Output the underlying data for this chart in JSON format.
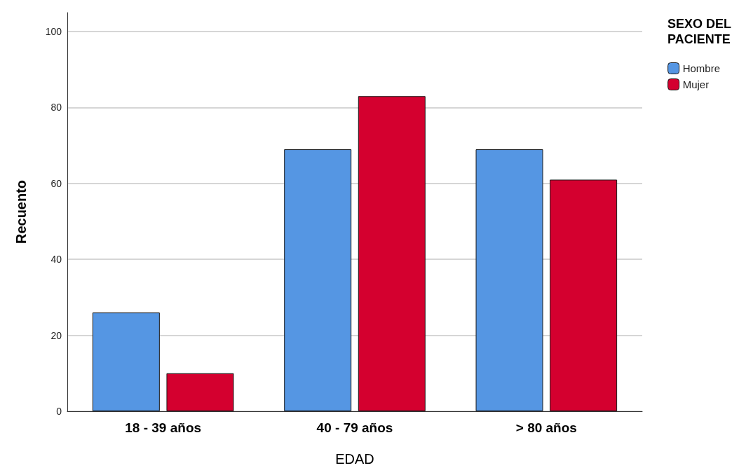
{
  "chart_data": {
    "type": "bar",
    "xlabel": "EDAD",
    "ylabel": "Recuento",
    "legend_title": "SEXO DEL\nPACIENTE",
    "categories": [
      "18 - 39 años",
      "40 - 79 años",
      "> 80 años"
    ],
    "series": [
      {
        "name": "Hombre",
        "color": "#5596e3",
        "values": [
          26,
          69,
          69
        ]
      },
      {
        "name": "Mujer",
        "color": "#d4002f",
        "values": [
          10,
          83,
          61
        ]
      }
    ],
    "ylim": [
      0,
      105
    ],
    "yticks": [
      0,
      20,
      40,
      60,
      80,
      100
    ],
    "grid": "y",
    "legend": "top right"
  }
}
